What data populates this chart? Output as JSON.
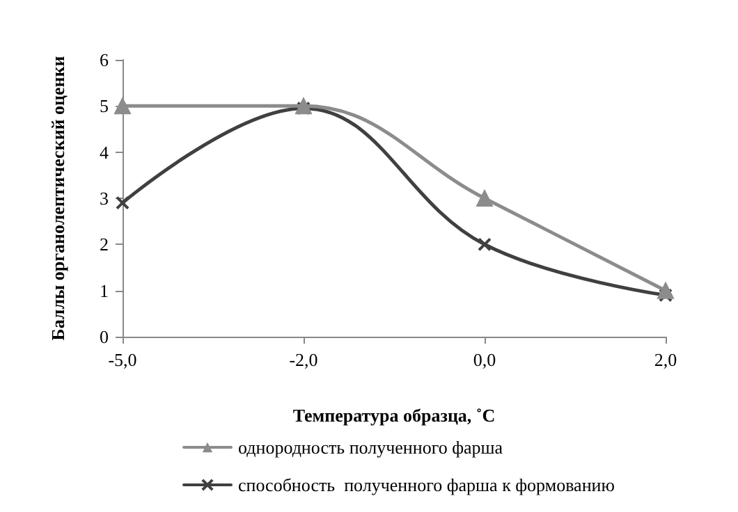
{
  "chart_data": {
    "type": "line",
    "xlabel": "Температура образца, ˚C",
    "ylabel": "Баллы органолептический оценки",
    "categories": [
      "-5,0",
      "-2,0",
      "0,0",
      "2,0"
    ],
    "series": [
      {
        "name": "однородность полученного фарша",
        "color": "#8c8c8c",
        "marker": "triangle",
        "values": [
          5,
          5,
          3,
          1
        ]
      },
      {
        "name": "способность  полученного фарша к формованию",
        "color": "#404040",
        "marker": "cross",
        "values": [
          2.9,
          4.95,
          2,
          0.9
        ]
      }
    ],
    "ylim": [
      0,
      6
    ],
    "yticks": [
      0,
      1,
      2,
      3,
      4,
      5,
      6
    ],
    "grid": false,
    "legend": "bottom"
  }
}
